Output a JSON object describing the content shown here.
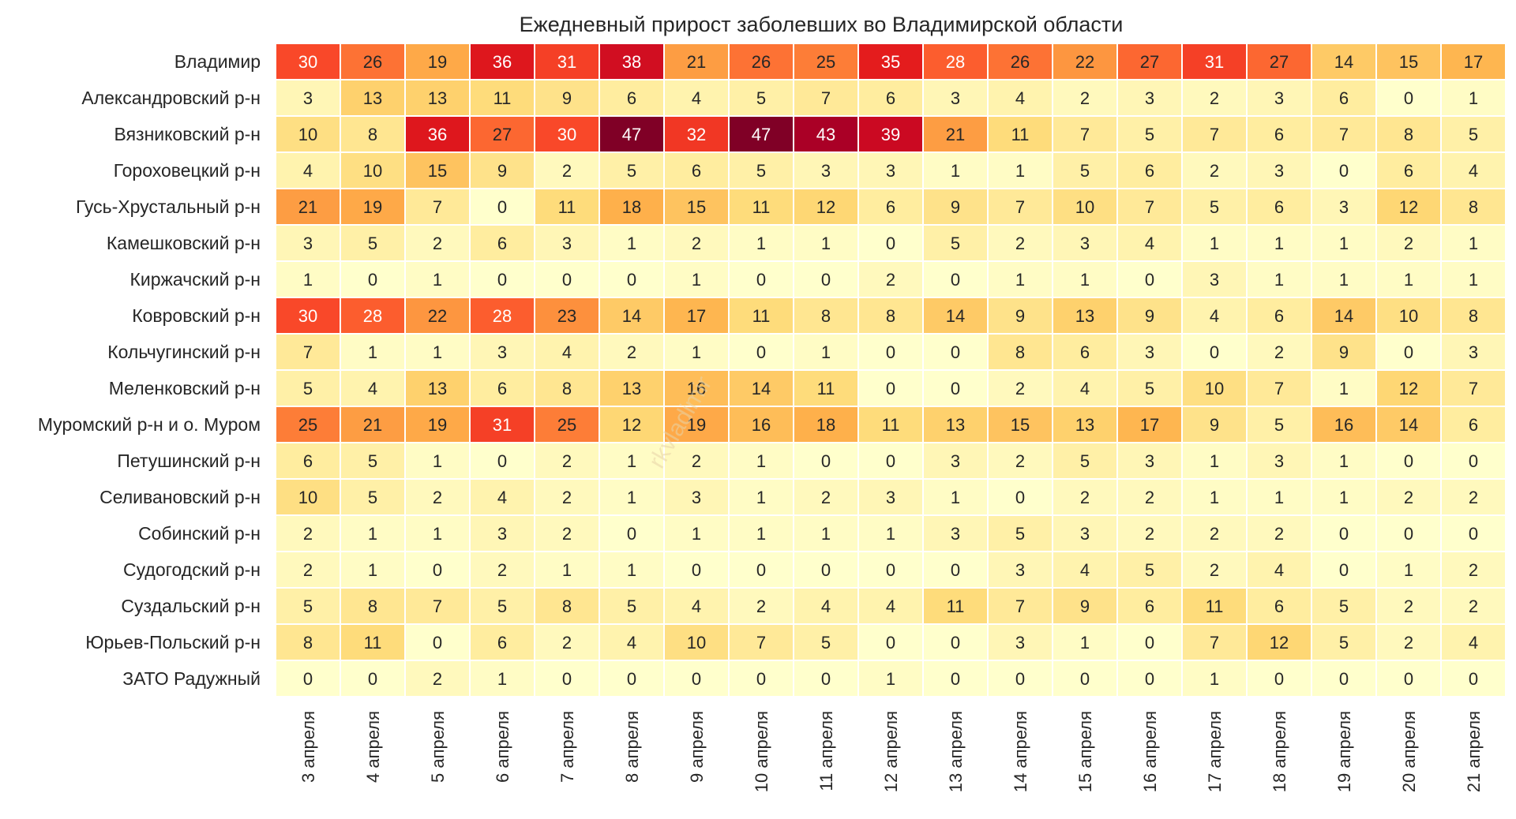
{
  "chart_data": {
    "type": "heatmap",
    "title": "Ежедневный прирост заболевших во Владимирской области",
    "watermark": "rkvladimir",
    "rows": [
      "Владимир",
      "Александровский р-н",
      "Вязниковский р-н",
      "Гороховецкий р-н",
      "Гусь-Хрустальный р-н",
      "Камешковский р-н",
      "Киржачский р-н",
      "Ковровский р-н",
      "Кольчугинский р-н",
      "Меленковский р-н",
      "Муромский р-н и о. Муром",
      "Петушинский р-н",
      "Селивановский р-н",
      "Собинский р-н",
      "Судогодский р-н",
      "Суздальский р-н",
      "Юрьев-Польский р-н",
      "ЗАТО Радужный"
    ],
    "columns": [
      "3 апреля",
      "4 апреля",
      "5 апреля",
      "6 апреля",
      "7 апреля",
      "8 апреля",
      "9 апреля",
      "10 апреля",
      "11 апреля",
      "12 апреля",
      "13 апреля",
      "14 апреля",
      "15 апреля",
      "16 апреля",
      "17 апреля",
      "18 апреля",
      "19 апреля",
      "20 апреля",
      "21 апреля"
    ],
    "values": [
      [
        30,
        26,
        19,
        36,
        31,
        38,
        21,
        26,
        25,
        35,
        28,
        26,
        22,
        27,
        31,
        27,
        14,
        15,
        17
      ],
      [
        3,
        13,
        13,
        11,
        9,
        6,
        4,
        5,
        7,
        6,
        3,
        4,
        2,
        3,
        2,
        3,
        6,
        0,
        1
      ],
      [
        10,
        8,
        36,
        27,
        30,
        47,
        32,
        47,
        43,
        39,
        21,
        11,
        7,
        5,
        7,
        6,
        7,
        8,
        5
      ],
      [
        4,
        10,
        15,
        9,
        2,
        5,
        6,
        5,
        3,
        3,
        1,
        1,
        5,
        6,
        2,
        3,
        0,
        6,
        4
      ],
      [
        21,
        19,
        7,
        0,
        11,
        18,
        15,
        11,
        12,
        6,
        9,
        7,
        10,
        7,
        5,
        6,
        3,
        12,
        8
      ],
      [
        3,
        5,
        2,
        6,
        3,
        1,
        2,
        1,
        1,
        0,
        5,
        2,
        3,
        4,
        1,
        1,
        1,
        2,
        1
      ],
      [
        1,
        0,
        1,
        0,
        0,
        0,
        1,
        0,
        0,
        2,
        0,
        1,
        1,
        0,
        3,
        1,
        1,
        1,
        1
      ],
      [
        30,
        28,
        22,
        28,
        23,
        14,
        17,
        11,
        8,
        8,
        14,
        9,
        13,
        9,
        4,
        6,
        14,
        10,
        8
      ],
      [
        7,
        1,
        1,
        3,
        4,
        2,
        1,
        0,
        1,
        0,
        0,
        8,
        6,
        3,
        0,
        2,
        9,
        0,
        3
      ],
      [
        5,
        4,
        13,
        6,
        8,
        13,
        16,
        14,
        11,
        0,
        0,
        2,
        4,
        5,
        10,
        7,
        1,
        12,
        7
      ],
      [
        25,
        21,
        19,
        31,
        25,
        12,
        19,
        16,
        18,
        11,
        13,
        15,
        13,
        17,
        9,
        5,
        16,
        14,
        6
      ],
      [
        6,
        5,
        1,
        0,
        2,
        1,
        2,
        1,
        0,
        0,
        3,
        2,
        5,
        3,
        1,
        3,
        1,
        0,
        0
      ],
      [
        10,
        5,
        2,
        4,
        2,
        1,
        3,
        1,
        2,
        3,
        1,
        0,
        2,
        2,
        1,
        1,
        1,
        2,
        2
      ],
      [
        2,
        1,
        1,
        3,
        2,
        0,
        1,
        1,
        1,
        1,
        3,
        5,
        3,
        2,
        2,
        2,
        0,
        0,
        0
      ],
      [
        2,
        1,
        0,
        2,
        1,
        1,
        0,
        0,
        0,
        0,
        0,
        3,
        4,
        5,
        2,
        4,
        0,
        1,
        2
      ],
      [
        5,
        8,
        7,
        5,
        8,
        5,
        4,
        2,
        4,
        4,
        11,
        7,
        9,
        6,
        11,
        6,
        5,
        2,
        2
      ],
      [
        8,
        11,
        0,
        6,
        2,
        4,
        10,
        7,
        5,
        0,
        0,
        3,
        1,
        0,
        7,
        12,
        5,
        2,
        4
      ],
      [
        0,
        0,
        2,
        1,
        0,
        0,
        0,
        0,
        0,
        1,
        0,
        0,
        0,
        0,
        1,
        0,
        0,
        0,
        0
      ]
    ],
    "colormap": "YlOrRd",
    "vmin": 0,
    "vmax": 47
  }
}
